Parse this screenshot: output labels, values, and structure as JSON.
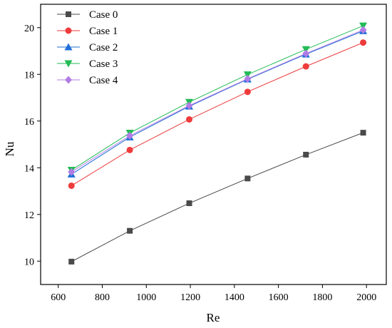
{
  "chart_data": {
    "type": "line",
    "xlabel": "Re",
    "ylabel": "Nu",
    "xlim": [
      520,
      2090
    ],
    "ylim": [
      9.0,
      21.0
    ],
    "xticks": [
      600,
      800,
      1000,
      1200,
      1400,
      1600,
      1800,
      2000
    ],
    "yticks": [
      10,
      12,
      14,
      16,
      18,
      20
    ],
    "grid": false,
    "legend_position": "top-left",
    "x": [
      660,
      925,
      1195,
      1460,
      1725,
      1985
    ],
    "series": [
      {
        "name": "Case 0",
        "color": "#4a4a4a",
        "marker": "square",
        "values": [
          9.98,
          11.3,
          12.48,
          13.54,
          14.56,
          15.5
        ]
      },
      {
        "name": "Case 1",
        "color": "#ee3b3b",
        "marker": "circle",
        "values": [
          13.23,
          14.76,
          16.07,
          17.25,
          18.34,
          19.36
        ]
      },
      {
        "name": "Case 2",
        "color": "#1f6fd6",
        "marker": "triangle-up",
        "values": [
          13.72,
          15.31,
          16.63,
          17.79,
          18.86,
          19.86
        ]
      },
      {
        "name": "Case 3",
        "color": "#22bb55",
        "marker": "triangle-down",
        "values": [
          13.9,
          15.49,
          16.81,
          17.99,
          19.07,
          20.08
        ]
      },
      {
        "name": "Case 4",
        "color": "#b27ce6",
        "marker": "diamond",
        "values": [
          13.82,
          15.37,
          16.66,
          17.81,
          18.89,
          19.9
        ]
      }
    ]
  }
}
